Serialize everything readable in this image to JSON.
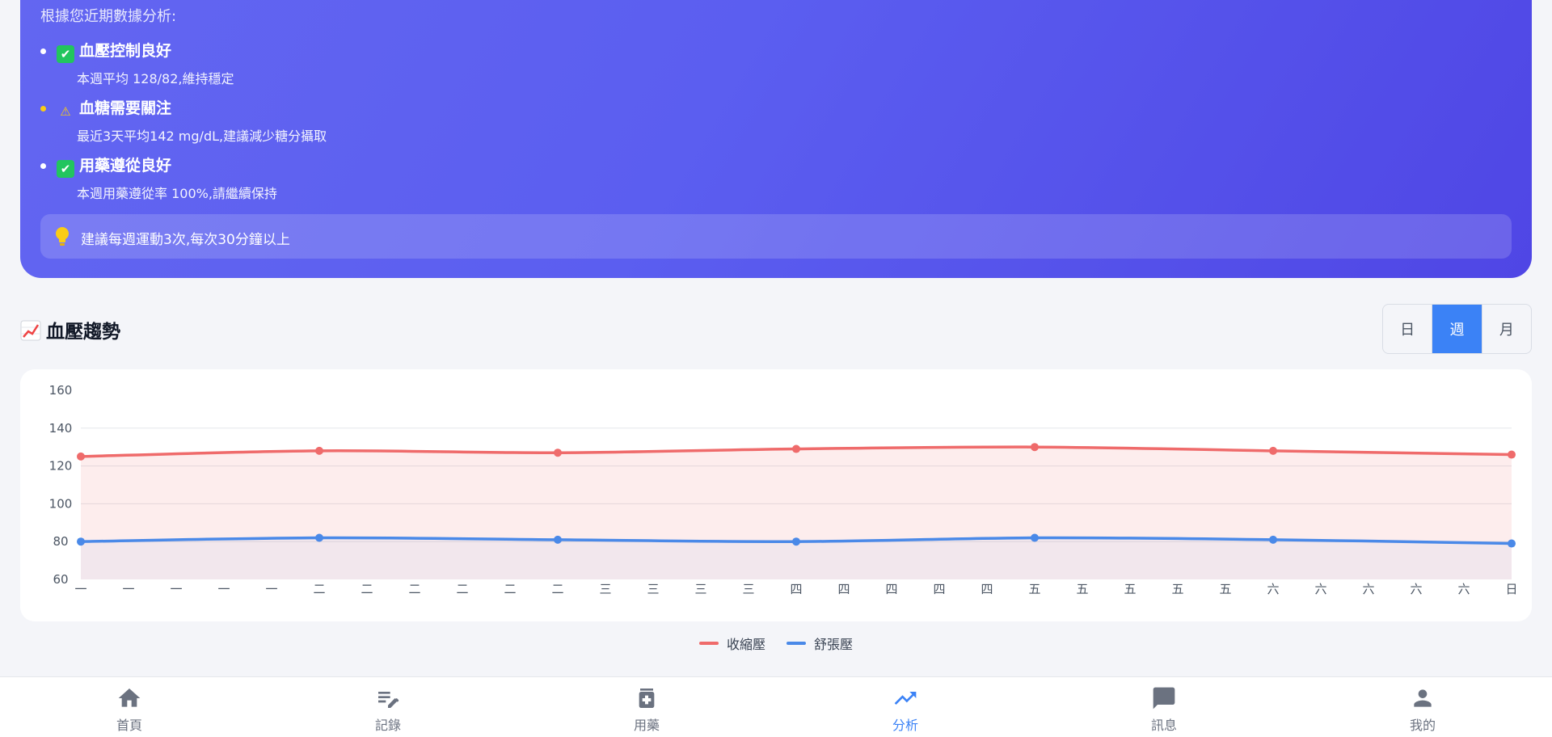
{
  "colors": {
    "accent": "#3b82f6",
    "card_gradient_start": "#6366f1",
    "card_gradient_end": "#4f46e5",
    "systolic": "#ef6b6b",
    "diastolic": "#4a89e8",
    "warning": "#facc15"
  },
  "ai_card": {
    "intro": "根據您近期數據分析:",
    "insights": [
      {
        "status": "ok",
        "emoji": "✔",
        "title": "血壓控制良好",
        "desc": "本週平均 128/82,維持穩定"
      },
      {
        "status": "warn",
        "emoji": "⚠",
        "title": "血糖需要關注",
        "desc": "最近3天平均142 mg/dL,建議減少糖分攝取"
      },
      {
        "status": "ok",
        "emoji": "✔",
        "title": "用藥遵從良好",
        "desc": "本週用藥遵從率 100%,請繼續保持"
      }
    ],
    "tip": {
      "icon": "lightbulb-icon",
      "text": "建議每週運動3次,每次30分鐘以上"
    }
  },
  "trend_section": {
    "title": "血壓趨勢",
    "title_icon": "chart-increasing-icon",
    "range_options": [
      "日",
      "週",
      "月"
    ],
    "active_range": "週"
  },
  "chart_data": {
    "type": "line",
    "x": [
      "一",
      "一",
      "一",
      "一",
      "一",
      "二",
      "二",
      "二",
      "二",
      "二",
      "二",
      "三",
      "三",
      "三",
      "三",
      "四",
      "四",
      "四",
      "四",
      "四",
      "五",
      "五",
      "五",
      "五",
      "五",
      "六",
      "六",
      "六",
      "六",
      "六",
      "日"
    ],
    "ylim": [
      60,
      160
    ],
    "yticks": [
      60,
      80,
      100,
      120,
      140,
      160
    ],
    "grid": true,
    "area_fill": true,
    "legend_position": "bottom-center",
    "series": [
      {
        "name": "收縮壓",
        "color": "#ef6b6b",
        "points": [
          [
            0,
            125
          ],
          [
            5,
            128
          ],
          [
            10,
            127
          ],
          [
            15,
            129
          ],
          [
            20,
            130
          ],
          [
            25,
            128
          ],
          [
            30,
            126
          ]
        ]
      },
      {
        "name": "舒張壓",
        "color": "#4a89e8",
        "points": [
          [
            0,
            80
          ],
          [
            5,
            82
          ],
          [
            10,
            81
          ],
          [
            15,
            80
          ],
          [
            20,
            82
          ],
          [
            25,
            81
          ],
          [
            30,
            79
          ]
        ]
      }
    ]
  },
  "bottom_nav": {
    "items": [
      {
        "label": "首頁",
        "icon": "home-icon"
      },
      {
        "label": "記錄",
        "icon": "edit-note-icon"
      },
      {
        "label": "用藥",
        "icon": "medication-icon"
      },
      {
        "label": "分析",
        "icon": "trending-up-icon"
      },
      {
        "label": "訊息",
        "icon": "message-icon"
      },
      {
        "label": "我的",
        "icon": "person-icon"
      }
    ],
    "active": "分析"
  }
}
